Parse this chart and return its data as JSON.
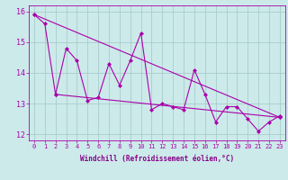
{
  "xlabel": "Windchill (Refroidissement éolien,°C)",
  "x": [
    0,
    1,
    2,
    3,
    4,
    5,
    6,
    7,
    8,
    9,
    10,
    11,
    12,
    13,
    14,
    15,
    16,
    17,
    18,
    19,
    20,
    21,
    22,
    23
  ],
  "windchill": [
    15.9,
    15.6,
    13.3,
    14.8,
    14.4,
    13.1,
    13.2,
    14.3,
    13.6,
    14.4,
    15.3,
    12.8,
    13.0,
    12.9,
    12.8,
    14.1,
    13.3,
    12.4,
    12.9,
    12.9,
    12.5,
    12.1,
    12.4,
    12.6
  ],
  "trend1_x": [
    0,
    23
  ],
  "trend1_y": [
    15.9,
    12.55
  ],
  "trend2_x": [
    2,
    23
  ],
  "trend2_y": [
    13.3,
    12.55
  ],
  "ylim": [
    11.8,
    16.2
  ],
  "xlim": [
    -0.5,
    23.5
  ],
  "line_color": "#aa00aa",
  "bg_color": "#cceaea",
  "grid_color": "#aacccc",
  "tick_label_color": "#aa00aa",
  "axis_label_color": "#880088",
  "marker": "D",
  "markersize": 2,
  "linewidth": 0.8,
  "tick_fontsize": 5.0,
  "ylabel_fontsize": 5.5,
  "xlabel_fontsize": 5.5
}
